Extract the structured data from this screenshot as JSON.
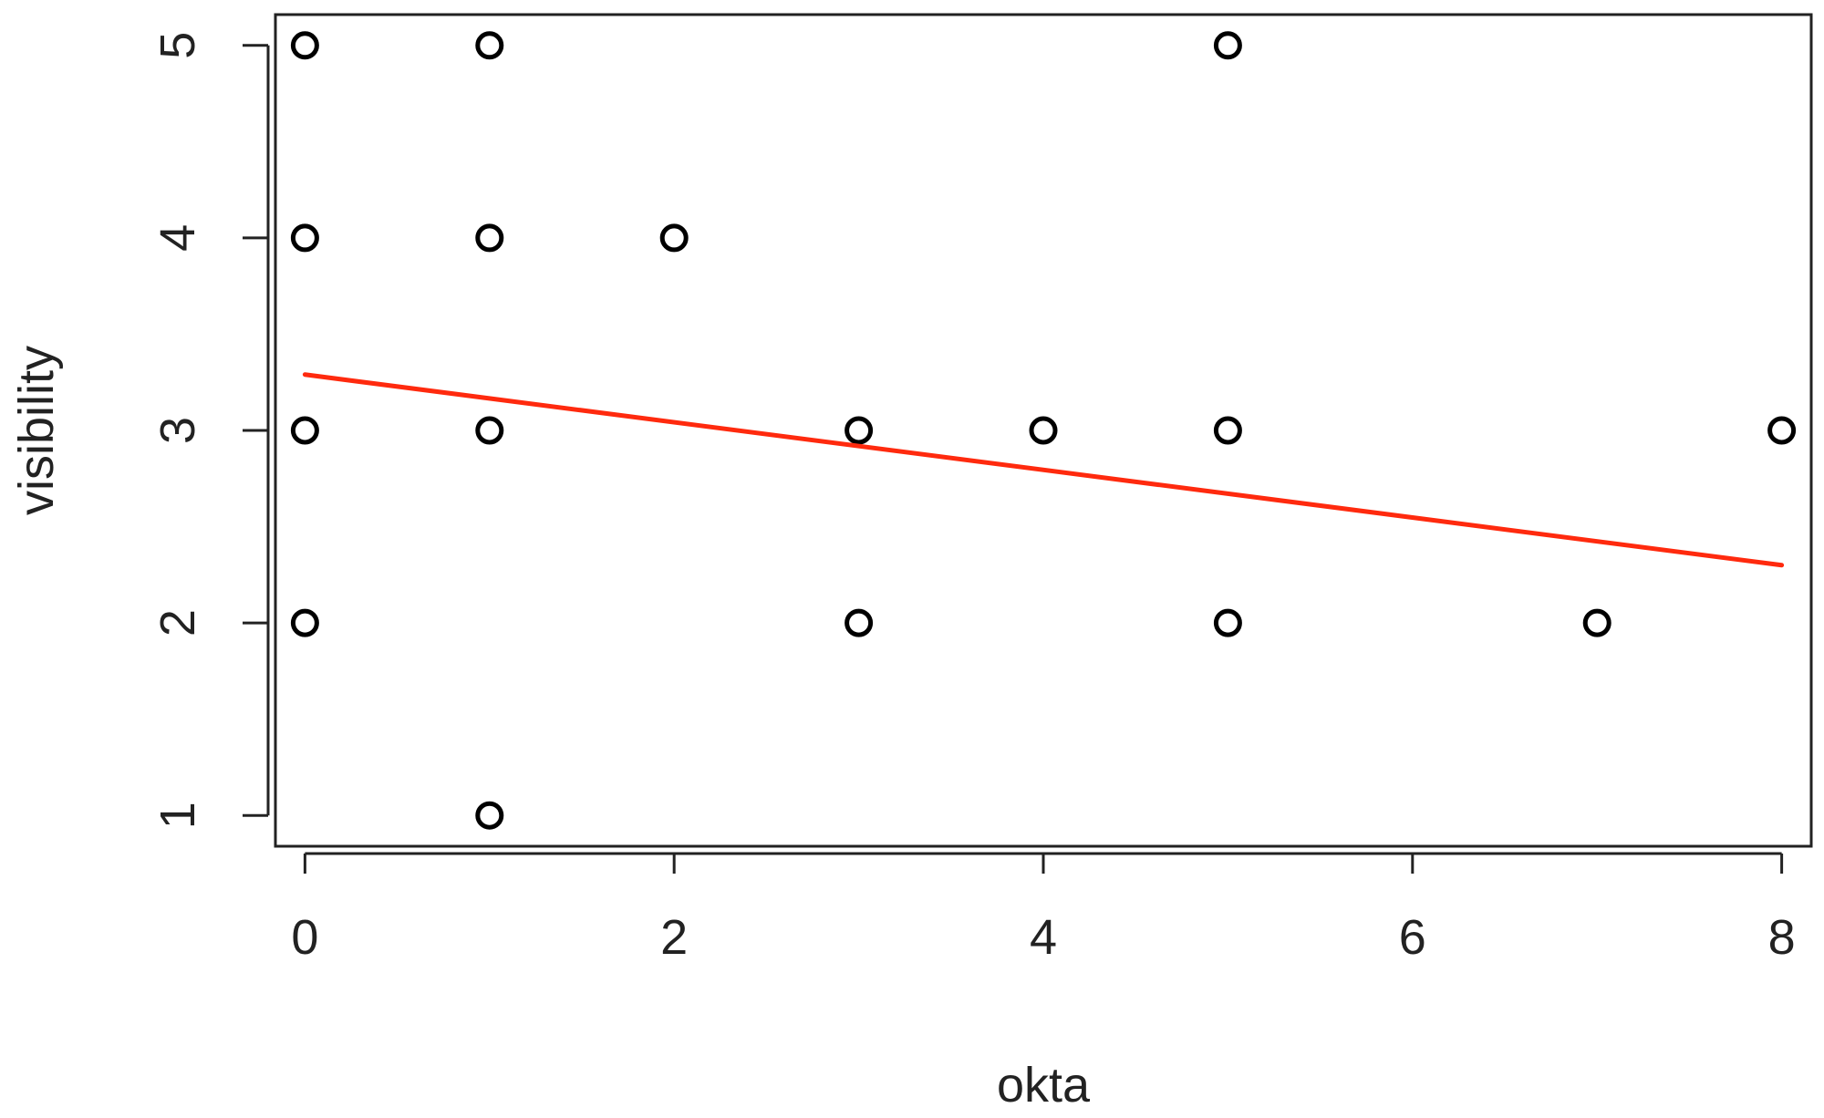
{
  "chart_data": {
    "type": "scatter",
    "title": "",
    "xlabel": "okta",
    "ylabel": "visibility",
    "xlim": [
      -0.16,
      8.16
    ],
    "ylim": [
      0.84,
      5.16
    ],
    "xticks": [
      0,
      2,
      4,
      6,
      8
    ],
    "yticks": [
      1,
      2,
      3,
      4,
      5
    ],
    "grid": false,
    "legend": "none",
    "points": [
      {
        "x": 0,
        "y": 5
      },
      {
        "x": 0,
        "y": 4
      },
      {
        "x": 0,
        "y": 3
      },
      {
        "x": 0,
        "y": 2
      },
      {
        "x": 1,
        "y": 5
      },
      {
        "x": 1,
        "y": 4
      },
      {
        "x": 1,
        "y": 3
      },
      {
        "x": 1,
        "y": 1
      },
      {
        "x": 2,
        "y": 4
      },
      {
        "x": 3,
        "y": 3
      },
      {
        "x": 3,
        "y": 2
      },
      {
        "x": 4,
        "y": 3
      },
      {
        "x": 5,
        "y": 5
      },
      {
        "x": 5,
        "y": 3
      },
      {
        "x": 5,
        "y": 2
      },
      {
        "x": 7,
        "y": 2
      },
      {
        "x": 8,
        "y": 3
      }
    ],
    "trend_line": {
      "x": [
        0,
        8
      ],
      "y": [
        3.29,
        2.3
      ]
    },
    "colors": {
      "points": "#000000",
      "trend_line": "#ff2a0e",
      "axes": "#222222"
    }
  }
}
